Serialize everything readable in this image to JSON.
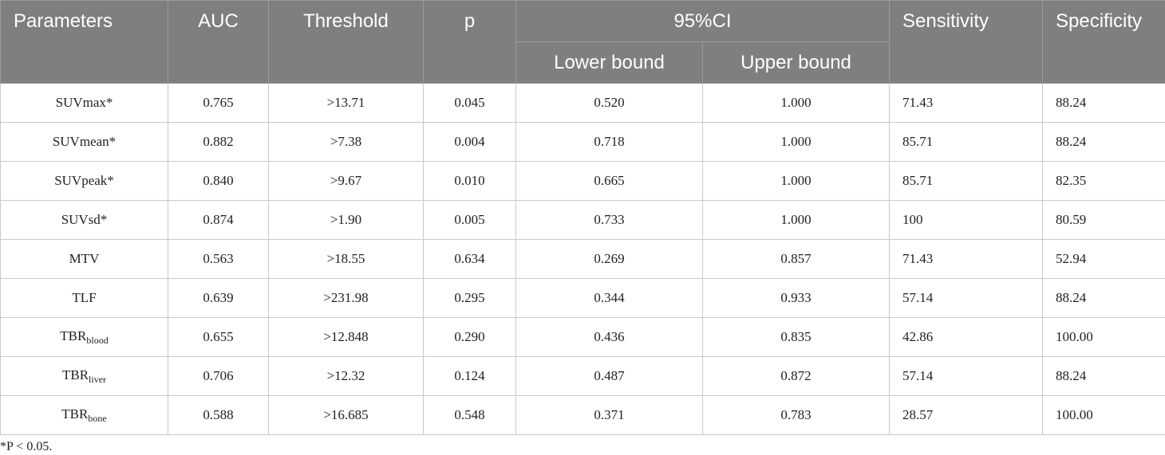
{
  "table": {
    "header": [
      "Parameters",
      "AUC",
      "Threshold",
      "p",
      "95%CI",
      "Sensitivity",
      "Specificity"
    ],
    "subheader": [
      "Lower bound",
      "Upper bound"
    ],
    "rows": [
      [
        "SUVmax*",
        "0.765",
        ">13.71",
        "0.045",
        "0.520",
        "1.000",
        "71.43",
        "88.24"
      ],
      [
        "SUVmean*",
        "0.882",
        ">7.38",
        "0.004",
        "0.718",
        "1.000",
        "85.71",
        "88.24"
      ],
      [
        "SUVpeak*",
        "0.840",
        ">9.67",
        "0.010",
        "0.665",
        "1.000",
        "85.71",
        "82.35"
      ],
      [
        "SUVsd*",
        "0.874",
        ">1.90",
        "0.005",
        "0.733",
        "1.000",
        "100",
        "80.59"
      ],
      [
        "MTV",
        "0.563",
        ">18.55",
        "0.634",
        "0.269",
        "0.857",
        "71.43",
        "52.94"
      ],
      [
        "TLF",
        "0.639",
        ">231.98",
        "0.295",
        "0.344",
        "0.933",
        "57.14",
        "88.24"
      ],
      [
        {
          "text": "TBR",
          "sub": "blood"
        },
        "0.655",
        ">12.848",
        "0.290",
        "0.436",
        "0.835",
        "42.86",
        "100.00"
      ],
      [
        {
          "text": "TBR",
          "sub": "liver"
        },
        "0.706",
        ">12.32",
        "0.124",
        "0.487",
        "0.872",
        "57.14",
        "88.24"
      ],
      [
        {
          "text": "TBR",
          "sub": "bone"
        },
        "0.588",
        ">16.685",
        "0.548",
        "0.371",
        "0.783",
        "28.57",
        "100.00"
      ]
    ],
    "footnote": "*P < 0.05."
  }
}
